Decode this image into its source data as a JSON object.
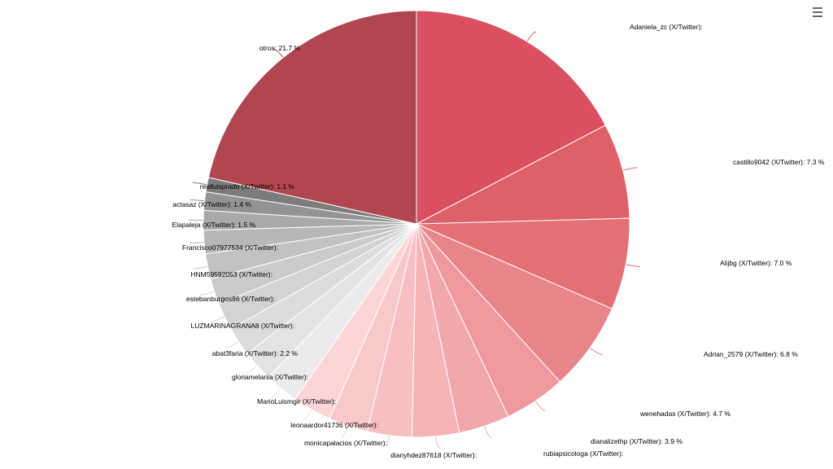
{
  "toolbar": {
    "menu_icon": "hamburger-menu-icon"
  },
  "chart_data": {
    "type": "pie",
    "title": "",
    "start_angle_deg": 0,
    "direction": "clockwise",
    "slices": [
      {
        "label": "Adaniela_zc (X/Twitter):",
        "value": 17.5,
        "color": "#da5060"
      },
      {
        "label": "castillo9042 (X/Twitter): 7.3 %",
        "value": 7.3,
        "color": "#de6068"
      },
      {
        "label": "Alijbg (X/Twitter): 7.0 %",
        "value": 7.0,
        "color": "#e27074"
      },
      {
        "label": "Adrian_2579 (X/Twitter): 6.8 %",
        "value": 6.8,
        "color": "#e8858a"
      },
      {
        "label": "wenehadas (X/Twitter): 4.7 %",
        "value": 4.7,
        "color": "#ee999d"
      },
      {
        "label": "dianalizethp (X/Twitter): 3.9 %",
        "value": 3.9,
        "color": "#f2a8ab"
      },
      {
        "label": "rubiapsicologa (X/Twitter):",
        "value": 3.6,
        "color": "#f5b5b7"
      },
      {
        "label": "dianyhdez87618 (X/Twitter):",
        "value": 3.4,
        "color": "#f7bfc1"
      },
      {
        "label": "monicapalacios (X/Twitter):",
        "value": 3.0,
        "color": "#f9c9ca"
      },
      {
        "label": "leonaardor41736 (X/Twitter):",
        "value": 3.0,
        "color": "#fcd6d7"
      },
      {
        "label": "MarioLuismgir (X/Twitter):",
        "value": 2.6,
        "color": "#ebebeb"
      },
      {
        "label": "gloriamelania (X/Twitter):",
        "value": 2.4,
        "color": "#e3e3e3"
      },
      {
        "label": "abat3faria (X/Twitter): 2.2 %",
        "value": 2.2,
        "color": "#dcdcdc"
      },
      {
        "label": "LUZMARINAGRANA8 (X/Twitter):",
        "value": 2.1,
        "color": "#d3d3d3"
      },
      {
        "label": "estebanburgos86 (X/Twitter):",
        "value": 2.0,
        "color": "#cbcbcb"
      },
      {
        "label": "HNM59592053 (X/Twitter):",
        "value": 1.9,
        "color": "#c2c2c2"
      },
      {
        "label": "Francisco07977534 (X/Twitter):",
        "value": 1.8,
        "color": "#b7b7b7"
      },
      {
        "label": "Elapaleja (X/Twitter): 1.5 %",
        "value": 1.5,
        "color": "#a9a9a9"
      },
      {
        "label": "actasaz (X/Twitter): 1.4 %",
        "value": 1.4,
        "color": "#939393"
      },
      {
        "label": "realluisprado (X/Twitter): 1.1 %",
        "value": 1.1,
        "color": "#7c7c7c"
      },
      {
        "label": "otros: 21.7 %",
        "value": 21.7,
        "color": "#b24650"
      }
    ]
  }
}
